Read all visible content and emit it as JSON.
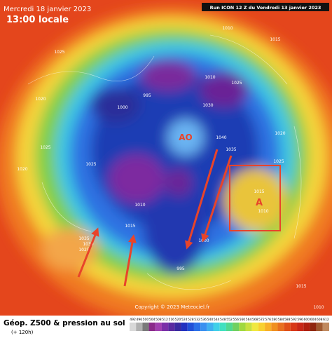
{
  "header": {
    "valid_date": "Mercredi 18 janvier 2023",
    "valid_time": "13:00 locale",
    "run": "Run ICON 12 Z du Vendredi 13 janvier 2023"
  },
  "map": {
    "centers": [
      "AO",
      "A"
    ],
    "isobar_labels": [
      "1025",
      "1010",
      "1015",
      "995",
      "1000",
      "1020",
      "1025",
      "1020",
      "1025",
      "1010",
      "1015",
      "1035",
      "1030",
      "1025",
      "1000",
      "995",
      "1010",
      "1025",
      "1030",
      "1040",
      "1035",
      "1020",
      "1025",
      "1015",
      "1010",
      "1015",
      "1010"
    ],
    "copyright": "Copyright © 2023 Meteociel.fr"
  },
  "footer": {
    "title": "Géop. Z500 & pression au sol",
    "lead": "(+ 120h)",
    "scale": [
      "492",
      "496",
      "500",
      "504",
      "508",
      "512",
      "516",
      "520",
      "524",
      "528",
      "532",
      "536",
      "540",
      "544",
      "548",
      "552",
      "556",
      "560",
      "564",
      "568",
      "572",
      "576",
      "580",
      "584",
      "588",
      "592",
      "596",
      "600",
      "604",
      "608",
      "612"
    ]
  }
}
